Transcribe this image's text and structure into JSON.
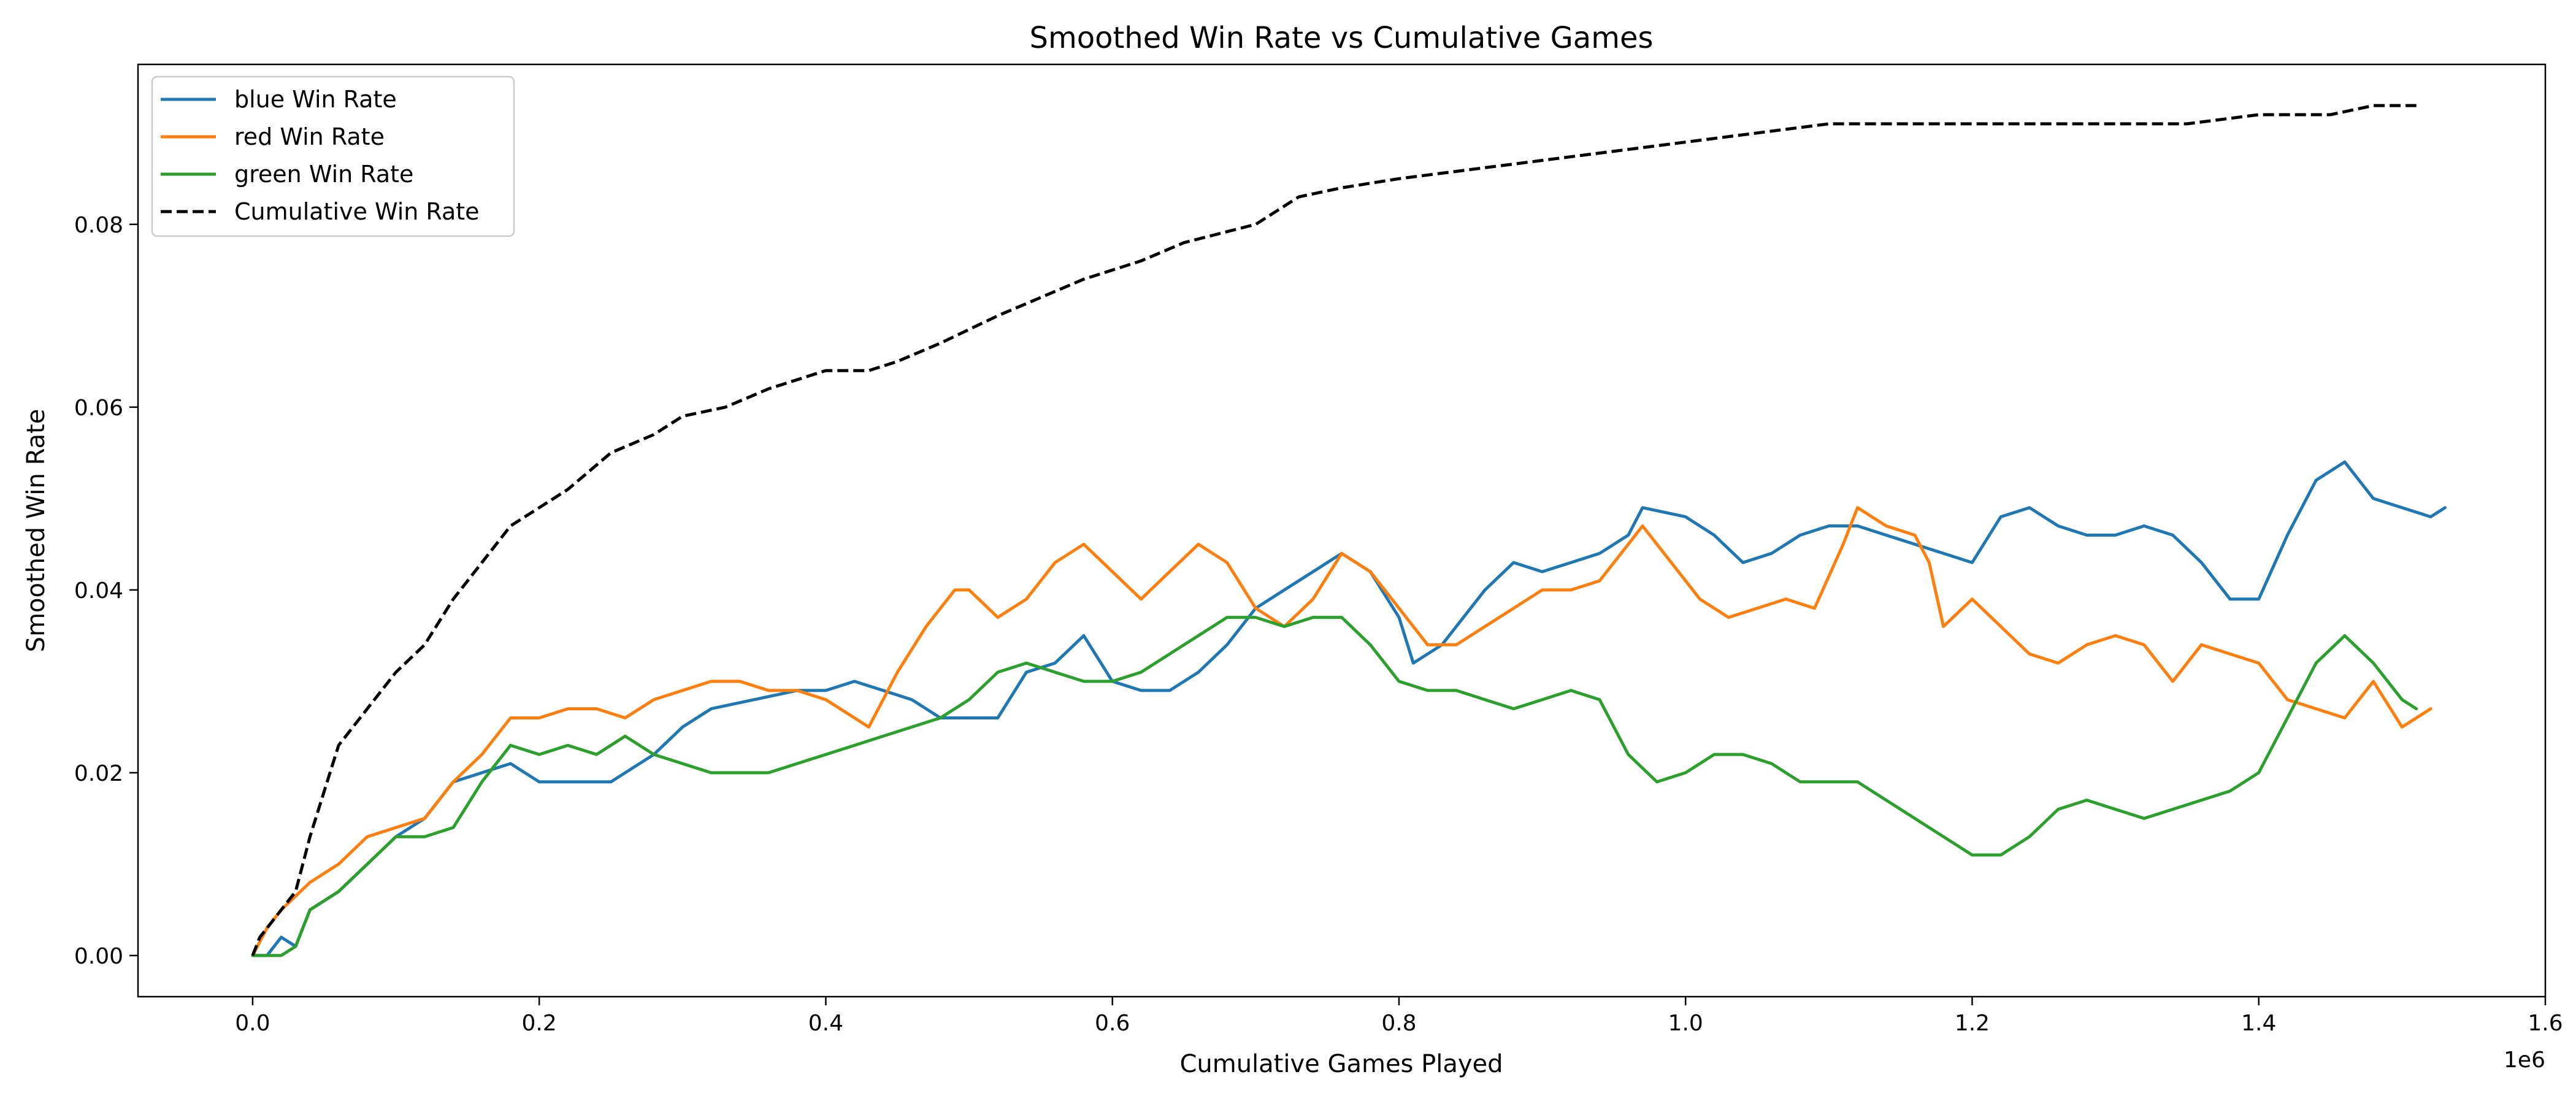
{
  "chart_data": {
    "type": "line",
    "title": "Smoothed Win Rate vs Cumulative Games",
    "xlabel": "Cumulative Games Played",
    "ylabel": "Smoothed Win Rate",
    "x_offset_label": "1e6",
    "xlim": [
      -0.08,
      1.6
    ],
    "ylim": [
      -0.0045,
      0.0975
    ],
    "xticks": [
      0.0,
      0.2,
      0.4,
      0.6,
      0.8,
      1.0,
      1.2,
      1.4,
      1.6
    ],
    "xtick_labels": [
      "0.0",
      "0.2",
      "0.4",
      "0.6",
      "0.8",
      "1.0",
      "1.2",
      "1.4",
      "1.6"
    ],
    "yticks": [
      0.0,
      0.02,
      0.04,
      0.06,
      0.08
    ],
    "ytick_labels": [
      "0.00",
      "0.02",
      "0.04",
      "0.06",
      "0.08"
    ],
    "grid": false,
    "legend_position": "top-left",
    "series": [
      {
        "name": "blue Win Rate",
        "color": "#1f77b4",
        "style": "solid",
        "points": [
          [
            0.0,
            0.0
          ],
          [
            0.01,
            0.0
          ],
          [
            0.02,
            0.002
          ],
          [
            0.03,
            0.001
          ],
          [
            0.04,
            0.005
          ],
          [
            0.06,
            0.007
          ],
          [
            0.08,
            0.01
          ],
          [
            0.1,
            0.013
          ],
          [
            0.12,
            0.015
          ],
          [
            0.14,
            0.019
          ],
          [
            0.16,
            0.02
          ],
          [
            0.18,
            0.021
          ],
          [
            0.2,
            0.019
          ],
          [
            0.22,
            0.019
          ],
          [
            0.25,
            0.019
          ],
          [
            0.28,
            0.022
          ],
          [
            0.3,
            0.025
          ],
          [
            0.32,
            0.027
          ],
          [
            0.35,
            0.028
          ],
          [
            0.38,
            0.029
          ],
          [
            0.4,
            0.029
          ],
          [
            0.42,
            0.03
          ],
          [
            0.44,
            0.029
          ],
          [
            0.46,
            0.028
          ],
          [
            0.48,
            0.026
          ],
          [
            0.5,
            0.026
          ],
          [
            0.52,
            0.026
          ],
          [
            0.54,
            0.031
          ],
          [
            0.56,
            0.032
          ],
          [
            0.58,
            0.035
          ],
          [
            0.6,
            0.03
          ],
          [
            0.62,
            0.029
          ],
          [
            0.64,
            0.029
          ],
          [
            0.66,
            0.031
          ],
          [
            0.68,
            0.034
          ],
          [
            0.7,
            0.038
          ],
          [
            0.72,
            0.04
          ],
          [
            0.74,
            0.042
          ],
          [
            0.76,
            0.044
          ],
          [
            0.78,
            0.042
          ],
          [
            0.8,
            0.037
          ],
          [
            0.81,
            0.032
          ],
          [
            0.83,
            0.034
          ],
          [
            0.86,
            0.04
          ],
          [
            0.88,
            0.043
          ],
          [
            0.9,
            0.042
          ],
          [
            0.92,
            0.043
          ],
          [
            0.94,
            0.044
          ],
          [
            0.96,
            0.046
          ],
          [
            0.97,
            0.049
          ],
          [
            1.0,
            0.048
          ],
          [
            1.02,
            0.046
          ],
          [
            1.04,
            0.043
          ],
          [
            1.06,
            0.044
          ],
          [
            1.08,
            0.046
          ],
          [
            1.1,
            0.047
          ],
          [
            1.12,
            0.047
          ],
          [
            1.14,
            0.046
          ],
          [
            1.16,
            0.045
          ],
          [
            1.18,
            0.044
          ],
          [
            1.2,
            0.043
          ],
          [
            1.22,
            0.048
          ],
          [
            1.24,
            0.049
          ],
          [
            1.26,
            0.047
          ],
          [
            1.28,
            0.046
          ],
          [
            1.3,
            0.046
          ],
          [
            1.32,
            0.047
          ],
          [
            1.34,
            0.046
          ],
          [
            1.36,
            0.043
          ],
          [
            1.38,
            0.039
          ],
          [
            1.4,
            0.039
          ],
          [
            1.42,
            0.046
          ],
          [
            1.44,
            0.052
          ],
          [
            1.46,
            0.054
          ],
          [
            1.48,
            0.05
          ],
          [
            1.5,
            0.049
          ],
          [
            1.52,
            0.048
          ],
          [
            1.53,
            0.049
          ]
        ]
      },
      {
        "name": "red Win Rate",
        "color": "#ff7f0e",
        "style": "solid",
        "points": [
          [
            0.0,
            0.0
          ],
          [
            0.01,
            0.003
          ],
          [
            0.02,
            0.005
          ],
          [
            0.04,
            0.008
          ],
          [
            0.06,
            0.01
          ],
          [
            0.08,
            0.013
          ],
          [
            0.1,
            0.014
          ],
          [
            0.12,
            0.015
          ],
          [
            0.14,
            0.019
          ],
          [
            0.16,
            0.022
          ],
          [
            0.18,
            0.026
          ],
          [
            0.2,
            0.026
          ],
          [
            0.22,
            0.027
          ],
          [
            0.24,
            0.027
          ],
          [
            0.26,
            0.026
          ],
          [
            0.28,
            0.028
          ],
          [
            0.3,
            0.029
          ],
          [
            0.32,
            0.03
          ],
          [
            0.34,
            0.03
          ],
          [
            0.36,
            0.029
          ],
          [
            0.38,
            0.029
          ],
          [
            0.4,
            0.028
          ],
          [
            0.42,
            0.026
          ],
          [
            0.43,
            0.025
          ],
          [
            0.45,
            0.031
          ],
          [
            0.47,
            0.036
          ],
          [
            0.49,
            0.04
          ],
          [
            0.5,
            0.04
          ],
          [
            0.52,
            0.037
          ],
          [
            0.54,
            0.039
          ],
          [
            0.56,
            0.043
          ],
          [
            0.58,
            0.045
          ],
          [
            0.6,
            0.042
          ],
          [
            0.62,
            0.039
          ],
          [
            0.64,
            0.042
          ],
          [
            0.66,
            0.045
          ],
          [
            0.68,
            0.043
          ],
          [
            0.7,
            0.038
          ],
          [
            0.72,
            0.036
          ],
          [
            0.74,
            0.039
          ],
          [
            0.76,
            0.044
          ],
          [
            0.78,
            0.042
          ],
          [
            0.8,
            0.038
          ],
          [
            0.82,
            0.034
          ],
          [
            0.84,
            0.034
          ],
          [
            0.86,
            0.036
          ],
          [
            0.88,
            0.038
          ],
          [
            0.9,
            0.04
          ],
          [
            0.92,
            0.04
          ],
          [
            0.94,
            0.041
          ],
          [
            0.96,
            0.045
          ],
          [
            0.97,
            0.047
          ],
          [
            0.99,
            0.043
          ],
          [
            1.01,
            0.039
          ],
          [
            1.03,
            0.037
          ],
          [
            1.05,
            0.038
          ],
          [
            1.07,
            0.039
          ],
          [
            1.09,
            0.038
          ],
          [
            1.11,
            0.045
          ],
          [
            1.12,
            0.049
          ],
          [
            1.14,
            0.047
          ],
          [
            1.16,
            0.046
          ],
          [
            1.17,
            0.043
          ],
          [
            1.18,
            0.036
          ],
          [
            1.2,
            0.039
          ],
          [
            1.22,
            0.036
          ],
          [
            1.24,
            0.033
          ],
          [
            1.26,
            0.032
          ],
          [
            1.28,
            0.034
          ],
          [
            1.3,
            0.035
          ],
          [
            1.32,
            0.034
          ],
          [
            1.34,
            0.03
          ],
          [
            1.36,
            0.034
          ],
          [
            1.38,
            0.033
          ],
          [
            1.4,
            0.032
          ],
          [
            1.42,
            0.028
          ],
          [
            1.44,
            0.027
          ],
          [
            1.46,
            0.026
          ],
          [
            1.48,
            0.03
          ],
          [
            1.5,
            0.025
          ],
          [
            1.52,
            0.027
          ]
        ]
      },
      {
        "name": "green Win Rate",
        "color": "#2ca02c",
        "style": "solid",
        "points": [
          [
            0.0,
            0.0
          ],
          [
            0.02,
            0.0
          ],
          [
            0.03,
            0.001
          ],
          [
            0.04,
            0.005
          ],
          [
            0.06,
            0.007
          ],
          [
            0.08,
            0.01
          ],
          [
            0.1,
            0.013
          ],
          [
            0.12,
            0.013
          ],
          [
            0.14,
            0.014
          ],
          [
            0.16,
            0.019
          ],
          [
            0.18,
            0.023
          ],
          [
            0.2,
            0.022
          ],
          [
            0.22,
            0.023
          ],
          [
            0.24,
            0.022
          ],
          [
            0.26,
            0.024
          ],
          [
            0.28,
            0.022
          ],
          [
            0.3,
            0.021
          ],
          [
            0.32,
            0.02
          ],
          [
            0.34,
            0.02
          ],
          [
            0.36,
            0.02
          ],
          [
            0.38,
            0.021
          ],
          [
            0.4,
            0.022
          ],
          [
            0.42,
            0.023
          ],
          [
            0.44,
            0.024
          ],
          [
            0.46,
            0.025
          ],
          [
            0.48,
            0.026
          ],
          [
            0.5,
            0.028
          ],
          [
            0.52,
            0.031
          ],
          [
            0.54,
            0.032
          ],
          [
            0.56,
            0.031
          ],
          [
            0.58,
            0.03
          ],
          [
            0.6,
            0.03
          ],
          [
            0.62,
            0.031
          ],
          [
            0.64,
            0.033
          ],
          [
            0.66,
            0.035
          ],
          [
            0.68,
            0.037
          ],
          [
            0.7,
            0.037
          ],
          [
            0.72,
            0.036
          ],
          [
            0.74,
            0.037
          ],
          [
            0.76,
            0.037
          ],
          [
            0.78,
            0.034
          ],
          [
            0.8,
            0.03
          ],
          [
            0.82,
            0.029
          ],
          [
            0.84,
            0.029
          ],
          [
            0.86,
            0.028
          ],
          [
            0.88,
            0.027
          ],
          [
            0.9,
            0.028
          ],
          [
            0.92,
            0.029
          ],
          [
            0.94,
            0.028
          ],
          [
            0.96,
            0.022
          ],
          [
            0.98,
            0.019
          ],
          [
            1.0,
            0.02
          ],
          [
            1.02,
            0.022
          ],
          [
            1.04,
            0.022
          ],
          [
            1.06,
            0.021
          ],
          [
            1.08,
            0.019
          ],
          [
            1.1,
            0.019
          ],
          [
            1.12,
            0.019
          ],
          [
            1.14,
            0.017
          ],
          [
            1.16,
            0.015
          ],
          [
            1.18,
            0.013
          ],
          [
            1.2,
            0.011
          ],
          [
            1.22,
            0.011
          ],
          [
            1.24,
            0.013
          ],
          [
            1.26,
            0.016
          ],
          [
            1.28,
            0.017
          ],
          [
            1.3,
            0.016
          ],
          [
            1.32,
            0.015
          ],
          [
            1.34,
            0.016
          ],
          [
            1.36,
            0.017
          ],
          [
            1.38,
            0.018
          ],
          [
            1.4,
            0.02
          ],
          [
            1.42,
            0.026
          ],
          [
            1.44,
            0.032
          ],
          [
            1.46,
            0.035
          ],
          [
            1.48,
            0.032
          ],
          [
            1.5,
            0.028
          ],
          [
            1.51,
            0.027
          ]
        ]
      },
      {
        "name": "Cumulative Win Rate",
        "color": "#000000",
        "style": "dashed",
        "points": [
          [
            0.0,
            0.0
          ],
          [
            0.005,
            0.002
          ],
          [
            0.01,
            0.003
          ],
          [
            0.02,
            0.005
          ],
          [
            0.03,
            0.007
          ],
          [
            0.04,
            0.013
          ],
          [
            0.05,
            0.018
          ],
          [
            0.06,
            0.023
          ],
          [
            0.08,
            0.027
          ],
          [
            0.1,
            0.031
          ],
          [
            0.12,
            0.034
          ],
          [
            0.14,
            0.039
          ],
          [
            0.16,
            0.043
          ],
          [
            0.18,
            0.047
          ],
          [
            0.2,
            0.049
          ],
          [
            0.22,
            0.051
          ],
          [
            0.25,
            0.055
          ],
          [
            0.28,
            0.057
          ],
          [
            0.3,
            0.059
          ],
          [
            0.33,
            0.06
          ],
          [
            0.36,
            0.062
          ],
          [
            0.4,
            0.064
          ],
          [
            0.43,
            0.064
          ],
          [
            0.45,
            0.065
          ],
          [
            0.48,
            0.067
          ],
          [
            0.52,
            0.07
          ],
          [
            0.55,
            0.072
          ],
          [
            0.58,
            0.074
          ],
          [
            0.62,
            0.076
          ],
          [
            0.65,
            0.078
          ],
          [
            0.7,
            0.08
          ],
          [
            0.73,
            0.083
          ],
          [
            0.76,
            0.084
          ],
          [
            0.8,
            0.085
          ],
          [
            0.85,
            0.086
          ],
          [
            0.9,
            0.087
          ],
          [
            0.95,
            0.088
          ],
          [
            1.0,
            0.089
          ],
          [
            1.05,
            0.09
          ],
          [
            1.1,
            0.091
          ],
          [
            1.15,
            0.091
          ],
          [
            1.2,
            0.091
          ],
          [
            1.25,
            0.091
          ],
          [
            1.3,
            0.091
          ],
          [
            1.35,
            0.091
          ],
          [
            1.4,
            0.092
          ],
          [
            1.45,
            0.092
          ],
          [
            1.48,
            0.093
          ],
          [
            1.51,
            0.093
          ]
        ]
      }
    ]
  }
}
